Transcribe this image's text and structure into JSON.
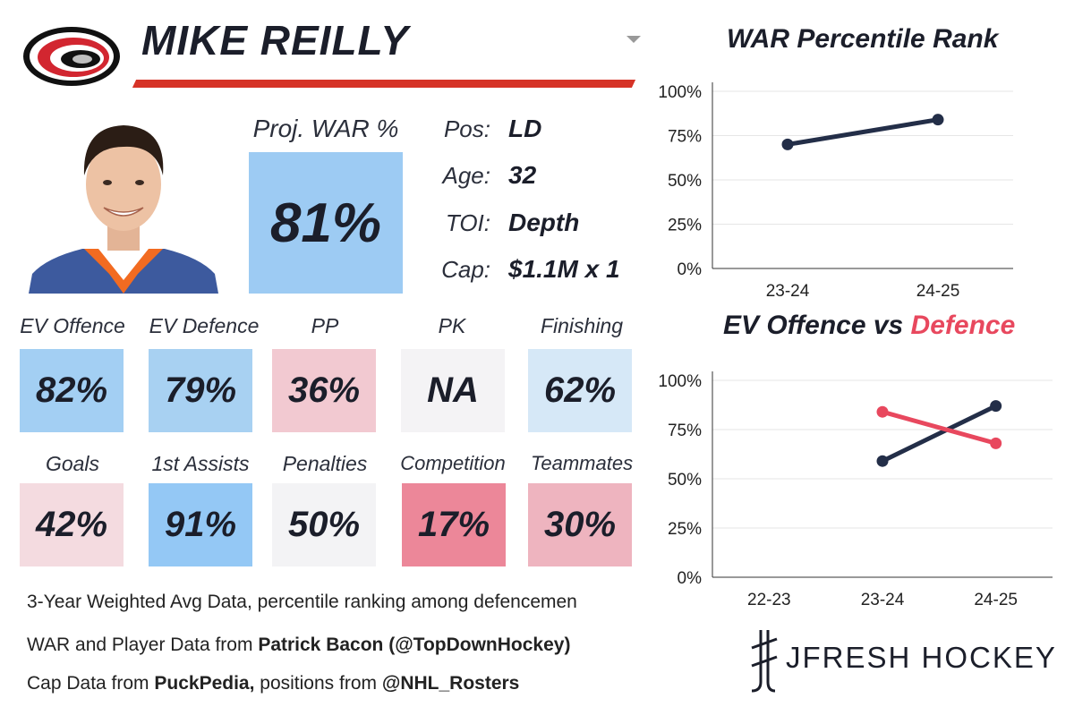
{
  "player": {
    "name": "MIKE REILLY",
    "proj_war_label": "Proj. WAR %",
    "proj_war_value": "81%",
    "proj_war_color": "#9dcbf3"
  },
  "info": [
    {
      "label": "Pos:",
      "value": "LD"
    },
    {
      "label": "Age:",
      "value": "32"
    },
    {
      "label": "TOI:",
      "value": "Depth"
    },
    {
      "label": "Cap:",
      "value": "$1.1M x 1"
    }
  ],
  "stats": [
    {
      "label": "EV Offence",
      "value": "82%",
      "color": "#a3cff3"
    },
    {
      "label": "EV Defence",
      "value": "79%",
      "color": "#a8d1f2"
    },
    {
      "label": "PP",
      "value": "36%",
      "color": "#f2c9d1"
    },
    {
      "label": "PK",
      "value": "NA",
      "color": "#f4f3f5"
    },
    {
      "label": "Finishing",
      "value": "62%",
      "color": "#d6e8f7"
    },
    {
      "label": "Goals",
      "value": "42%",
      "color": "#f4dbe0"
    },
    {
      "label": "1st Assists",
      "value": "91%",
      "color": "#94c8f5"
    },
    {
      "label": "Penalties",
      "value": "50%",
      "color": "#f3f3f5"
    },
    {
      "label": "Competition",
      "value": "17%",
      "color": "#ec8799"
    },
    {
      "label": "Teammates",
      "value": "30%",
      "color": "#eeb4bf"
    }
  ],
  "footnotes": {
    "line1": "3-Year Weighted Avg Data, percentile ranking among defencemen",
    "line2_pre": "WAR and Player Data from ",
    "line2_bold": "Patrick Bacon (@TopDownHockey)",
    "line3_pre": "Cap Data from ",
    "line3_bold1": "PuckPedia,",
    "line3_mid": " positions from ",
    "line3_bold2": "@NHL_Rosters"
  },
  "brand": {
    "name": "JFRESH HOCKEY"
  },
  "colors": {
    "navy": "#232e48",
    "red": "#e8485e",
    "accent_bar": "#d63327"
  },
  "chart_data": [
    {
      "type": "line",
      "title": "WAR Percentile Rank",
      "categories": [
        "23-24",
        "24-25"
      ],
      "series": [
        {
          "values": [
            70,
            84
          ],
          "color": "#232e48"
        }
      ],
      "ylim": [
        0,
        100
      ],
      "yticks": [
        "0%",
        "25%",
        "50%",
        "75%",
        "100%"
      ],
      "grid": true
    },
    {
      "type": "line",
      "title_parts": [
        "EV Offence vs ",
        "Defence"
      ],
      "categories": [
        "22-23",
        "23-24",
        "24-25"
      ],
      "series": [
        {
          "values": [
            null,
            59,
            87
          ],
          "color": "#232e48"
        },
        {
          "values": [
            null,
            84,
            68
          ],
          "color": "#e8485e"
        }
      ],
      "ylim": [
        0,
        100
      ],
      "yticks": [
        "0%",
        "25%",
        "50%",
        "75%",
        "100%"
      ],
      "grid": true
    }
  ]
}
